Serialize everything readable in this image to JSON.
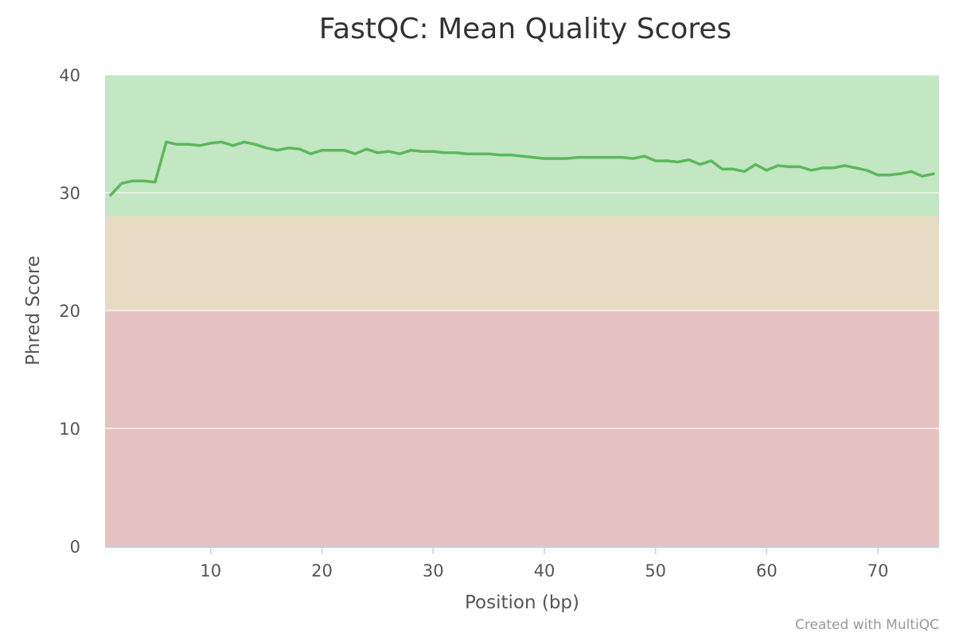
{
  "chart_data": {
    "type": "line",
    "title": "FastQC: Mean Quality Scores",
    "xlabel": "Position (bp)",
    "ylabel": "Phred Score",
    "xlim": [
      0.5,
      75.5
    ],
    "ylim": [
      0,
      40
    ],
    "x_ticks": [
      10,
      20,
      30,
      40,
      50,
      60,
      70
    ],
    "y_ticks": [
      0,
      10,
      20,
      30,
      40
    ],
    "grid": true,
    "bands": [
      {
        "from": 28,
        "to": 40,
        "color": "#c3e6c3"
      },
      {
        "from": 20,
        "to": 28,
        "color": "#e6dcc3"
      },
      {
        "from": 0,
        "to": 20,
        "color": "#e6c3c3"
      }
    ],
    "series": [
      {
        "color": "#5cb85c",
        "x": [
          1,
          2,
          3,
          4,
          5,
          6,
          7,
          8,
          9,
          10,
          11,
          12,
          13,
          14,
          15,
          16,
          17,
          18,
          19,
          20,
          21,
          22,
          23,
          24,
          25,
          26,
          27,
          28,
          29,
          30,
          31,
          32,
          33,
          34,
          35,
          36,
          37,
          38,
          39,
          40,
          41,
          42,
          43,
          44,
          45,
          46,
          47,
          48,
          49,
          50,
          51,
          52,
          53,
          54,
          55,
          56,
          57,
          58,
          59,
          60,
          61,
          62,
          63,
          64,
          65,
          66,
          67,
          68,
          69,
          70,
          71,
          72,
          73,
          74,
          75
        ],
        "values": [
          29.8,
          30.8,
          31.0,
          31.0,
          30.9,
          34.3,
          34.1,
          34.1,
          34.0,
          34.2,
          34.3,
          34.0,
          34.3,
          34.1,
          33.8,
          33.6,
          33.8,
          33.7,
          33.3,
          33.6,
          33.6,
          33.6,
          33.3,
          33.7,
          33.4,
          33.5,
          33.3,
          33.6,
          33.5,
          33.5,
          33.4,
          33.4,
          33.3,
          33.3,
          33.3,
          33.2,
          33.2,
          33.1,
          33.0,
          32.9,
          32.9,
          32.9,
          33.0,
          33.0,
          33.0,
          33.0,
          33.0,
          32.9,
          33.1,
          32.7,
          32.7,
          32.6,
          32.8,
          32.4,
          32.7,
          32.0,
          32.0,
          31.8,
          32.4,
          31.9,
          32.3,
          32.2,
          32.2,
          31.9,
          32.1,
          32.1,
          32.3,
          32.1,
          31.9,
          31.5,
          31.5,
          31.6,
          31.8,
          31.4,
          31.6
        ]
      }
    ]
  },
  "credit": "Created with MultiQC"
}
